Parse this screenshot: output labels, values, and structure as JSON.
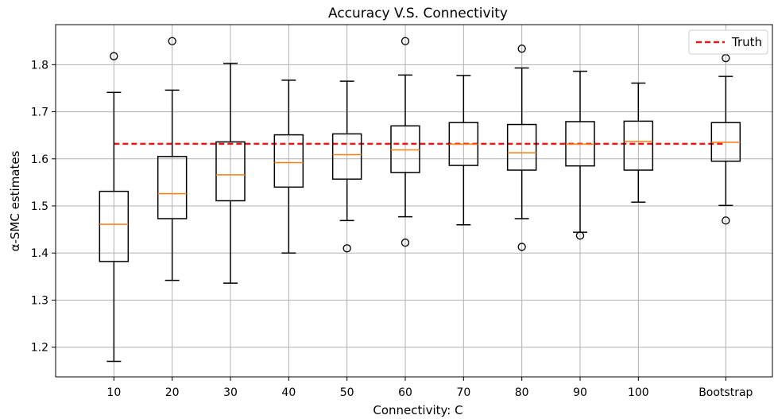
{
  "chart_data": {
    "type": "box",
    "title": "Accuracy V.S. Connectivity",
    "xlabel": "Connectivity: C",
    "ylabel": "α-SMC estimates",
    "categories": [
      "10",
      "20",
      "30",
      "40",
      "50",
      "60",
      "70",
      "80",
      "90",
      "100",
      "Bootstrap"
    ],
    "x_positions": [
      1,
      2,
      3,
      4,
      5,
      6,
      7,
      8,
      9,
      10,
      11.5
    ],
    "xlim": [
      0,
      12.3
    ],
    "ylim": [
      1.137,
      1.885
    ],
    "yticks": [
      1.2,
      1.3,
      1.4,
      1.5,
      1.6,
      1.7,
      1.8
    ],
    "ytick_labels": [
      "1.2",
      "1.3",
      "1.4",
      "1.5",
      "1.6",
      "1.7",
      "1.8"
    ],
    "grid": true,
    "legend": {
      "position": "top-right",
      "entries": [
        {
          "label": "Truth",
          "color": "#e41a1c",
          "style": "dashed"
        }
      ]
    },
    "truth": 1.632,
    "boxes": [
      {
        "label": "10",
        "whisker_low": 1.17,
        "q1": 1.382,
        "median": 1.461,
        "q3": 1.531,
        "whisker_high": 1.741,
        "outliers": [
          1.818
        ]
      },
      {
        "label": "20",
        "whisker_low": 1.342,
        "q1": 1.473,
        "median": 1.526,
        "q3": 1.605,
        "whisker_high": 1.746,
        "outliers": [
          1.85
        ]
      },
      {
        "label": "30",
        "whisker_low": 1.336,
        "q1": 1.511,
        "median": 1.566,
        "q3": 1.636,
        "whisker_high": 1.803,
        "outliers": []
      },
      {
        "label": "40",
        "whisker_low": 1.4,
        "q1": 1.54,
        "median": 1.592,
        "q3": 1.651,
        "whisker_high": 1.767,
        "outliers": []
      },
      {
        "label": "50",
        "whisker_low": 1.469,
        "q1": 1.557,
        "median": 1.609,
        "q3": 1.653,
        "whisker_high": 1.765,
        "outliers": [
          1.41
        ]
      },
      {
        "label": "60",
        "whisker_low": 1.477,
        "q1": 1.571,
        "median": 1.619,
        "q3": 1.67,
        "whisker_high": 1.778,
        "outliers": [
          1.85,
          1.422
        ]
      },
      {
        "label": "70",
        "whisker_low": 1.46,
        "q1": 1.586,
        "median": 1.631,
        "q3": 1.677,
        "whisker_high": 1.777,
        "outliers": []
      },
      {
        "label": "80",
        "whisker_low": 1.473,
        "q1": 1.576,
        "median": 1.613,
        "q3": 1.673,
        "whisker_high": 1.793,
        "outliers": [
          1.834,
          1.413
        ]
      },
      {
        "label": "90",
        "whisker_low": 1.444,
        "q1": 1.585,
        "median": 1.631,
        "q3": 1.679,
        "whisker_high": 1.786,
        "outliers": [
          1.437
        ]
      },
      {
        "label": "100",
        "whisker_low": 1.508,
        "q1": 1.576,
        "median": 1.637,
        "q3": 1.68,
        "whisker_high": 1.761,
        "outliers": []
      },
      {
        "label": "Bootstrap",
        "whisker_low": 1.501,
        "q1": 1.595,
        "median": 1.635,
        "q3": 1.677,
        "whisker_high": 1.775,
        "outliers": [
          1.814,
          1.469
        ]
      }
    ]
  }
}
